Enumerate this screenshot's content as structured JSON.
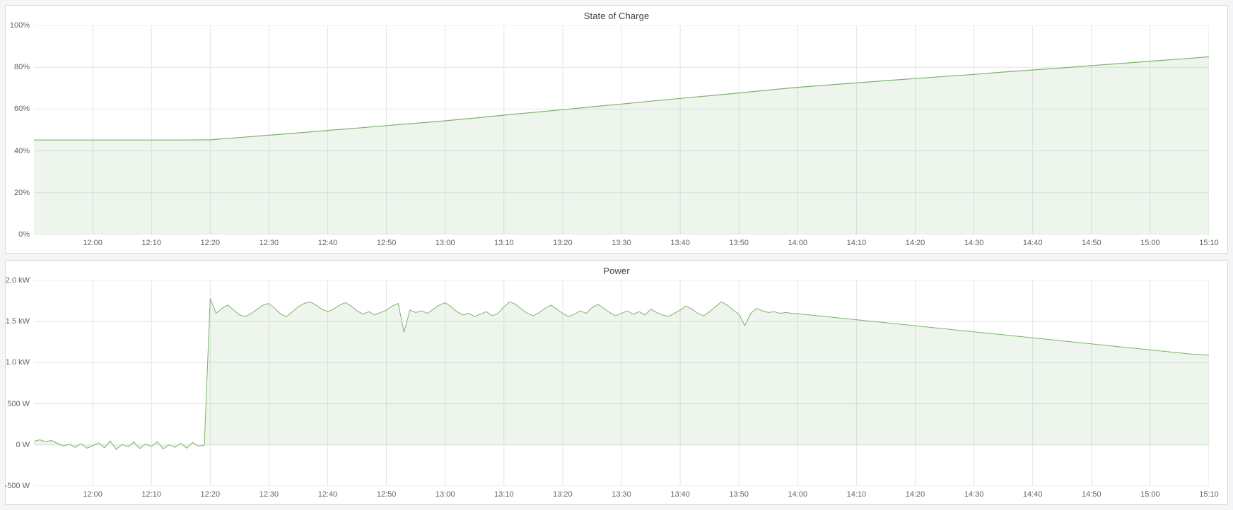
{
  "page": {
    "background_color": "#f4f5f6",
    "panel_border_color": "#d8d9da",
    "accent_green": "#7eb26d"
  },
  "chart_data": [
    {
      "type": "area",
      "title": "State of Charge",
      "x_unit": "minutes after 11:50",
      "x_range": [
        0,
        200
      ],
      "y_range": [
        0,
        100
      ],
      "grid": true,
      "grid_color": "#e4e5e7",
      "legend_position": "none",
      "x_ticks": [
        {
          "minute": 10,
          "label": "12:00"
        },
        {
          "minute": 20,
          "label": "12:10"
        },
        {
          "minute": 30,
          "label": "12:20"
        },
        {
          "minute": 40,
          "label": "12:30"
        },
        {
          "minute": 50,
          "label": "12:40"
        },
        {
          "minute": 60,
          "label": "12:50"
        },
        {
          "minute": 70,
          "label": "13:00"
        },
        {
          "minute": 80,
          "label": "13:10"
        },
        {
          "minute": 90,
          "label": "13:20"
        },
        {
          "minute": 100,
          "label": "13:30"
        },
        {
          "minute": 110,
          "label": "13:40"
        },
        {
          "minute": 120,
          "label": "13:50"
        },
        {
          "minute": 130,
          "label": "14:00"
        },
        {
          "minute": 140,
          "label": "14:10"
        },
        {
          "minute": 150,
          "label": "14:20"
        },
        {
          "minute": 160,
          "label": "14:30"
        },
        {
          "minute": 170,
          "label": "14:40"
        },
        {
          "minute": 180,
          "label": "14:50"
        },
        {
          "minute": 190,
          "label": "15:00"
        },
        {
          "minute": 200,
          "label": "15:10"
        }
      ],
      "y_ticks": [
        {
          "value": 0,
          "label": "0%"
        },
        {
          "value": 20,
          "label": "20%"
        },
        {
          "value": 40,
          "label": "40%"
        },
        {
          "value": 60,
          "label": "60%"
        },
        {
          "value": 80,
          "label": "80%"
        },
        {
          "value": 100,
          "label": "100%"
        }
      ],
      "series": [
        {
          "name": "State of Charge",
          "unit": "%",
          "color": "#7eb26d",
          "fill": "rgba(126,178,109,0.13)",
          "fill_to": 0,
          "width": 1.2,
          "x_start": 0,
          "x_step": 5,
          "values": [
            45.2,
            45.2,
            45.2,
            45.2,
            45.2,
            45.2,
            45.3,
            46.4,
            47.5,
            48.6,
            49.8,
            50.9,
            52.1,
            53.2,
            54.4,
            55.7,
            57.1,
            58.4,
            59.7,
            61.1,
            62.4,
            63.8,
            65.1,
            66.4,
            67.7,
            69.1,
            70.4,
            71.5,
            72.5,
            73.6,
            74.6,
            75.6,
            76.6,
            77.7,
            78.7,
            79.7,
            80.8,
            81.8,
            82.9,
            83.9,
            85.0
          ]
        }
      ]
    },
    {
      "type": "area",
      "title": "Power",
      "x_unit": "minutes after 11:50",
      "x_range": [
        0,
        200
      ],
      "y_range": [
        -500,
        2000
      ],
      "grid": true,
      "grid_color": "#e4e5e7",
      "legend_position": "none",
      "x_ticks": [
        {
          "minute": 10,
          "label": "12:00"
        },
        {
          "minute": 20,
          "label": "12:10"
        },
        {
          "minute": 30,
          "label": "12:20"
        },
        {
          "minute": 40,
          "label": "12:30"
        },
        {
          "minute": 50,
          "label": "12:40"
        },
        {
          "minute": 60,
          "label": "12:50"
        },
        {
          "minute": 70,
          "label": "13:00"
        },
        {
          "minute": 80,
          "label": "13:10"
        },
        {
          "minute": 90,
          "label": "13:20"
        },
        {
          "minute": 100,
          "label": "13:30"
        },
        {
          "minute": 110,
          "label": "13:40"
        },
        {
          "minute": 120,
          "label": "13:50"
        },
        {
          "minute": 130,
          "label": "14:00"
        },
        {
          "minute": 140,
          "label": "14:10"
        },
        {
          "minute": 150,
          "label": "14:20"
        },
        {
          "minute": 160,
          "label": "14:30"
        },
        {
          "minute": 170,
          "label": "14:40"
        },
        {
          "minute": 180,
          "label": "14:50"
        },
        {
          "minute": 190,
          "label": "15:00"
        },
        {
          "minute": 200,
          "label": "15:10"
        }
      ],
      "y_ticks": [
        {
          "value": -500,
          "label": "-500 W"
        },
        {
          "value": 0,
          "label": "0 W"
        },
        {
          "value": 500,
          "label": "500 W"
        },
        {
          "value": 1000,
          "label": "1.0 kW"
        },
        {
          "value": 1500,
          "label": "1.5 kW"
        },
        {
          "value": 2000,
          "label": "2.0 kW"
        }
      ],
      "series": [
        {
          "name": "Power",
          "unit": "W",
          "color": "#7eb26d",
          "fill": "rgba(126,178,109,0.13)",
          "fill_to": 0,
          "width": 1,
          "x_start": 0,
          "x_step": 1,
          "values": [
            45,
            62,
            38,
            55,
            20,
            -15,
            8,
            -30,
            15,
            -40,
            -10,
            25,
            -35,
            50,
            -55,
            5,
            -25,
            35,
            -45,
            10,
            -20,
            40,
            -50,
            0,
            -30,
            20,
            -40,
            30,
            -15,
            -5,
            1780,
            1600,
            1660,
            1700,
            1640,
            1580,
            1560,
            1600,
            1650,
            1700,
            1720,
            1660,
            1590,
            1560,
            1620,
            1680,
            1720,
            1740,
            1700,
            1650,
            1620,
            1650,
            1700,
            1730,
            1690,
            1630,
            1590,
            1620,
            1580,
            1610,
            1640,
            1690,
            1720,
            1370,
            1640,
            1610,
            1630,
            1600,
            1650,
            1700,
            1730,
            1680,
            1620,
            1580,
            1600,
            1560,
            1590,
            1620,
            1570,
            1600,
            1680,
            1740,
            1710,
            1650,
            1600,
            1570,
            1610,
            1660,
            1700,
            1650,
            1600,
            1560,
            1590,
            1630,
            1600,
            1670,
            1710,
            1660,
            1610,
            1570,
            1600,
            1630,
            1590,
            1620,
            1580,
            1650,
            1610,
            1580,
            1560,
            1600,
            1640,
            1690,
            1650,
            1600,
            1570,
            1620,
            1680,
            1740,
            1700,
            1640,
            1590,
            1450,
            1600,
            1660,
            1630,
            1610,
            1620,
            1600,
            1610,
            1600,
            1595,
            1588,
            1581,
            1573,
            1566,
            1559,
            1551,
            1544,
            1537,
            1529,
            1522,
            1515,
            1507,
            1500,
            1493,
            1485,
            1478,
            1471,
            1463,
            1456,
            1449,
            1441,
            1434,
            1427,
            1419,
            1412,
            1405,
            1397,
            1390,
            1383,
            1375,
            1368,
            1361,
            1353,
            1346,
            1339,
            1331,
            1324,
            1317,
            1309,
            1302,
            1295,
            1287,
            1280,
            1273,
            1265,
            1258,
            1251,
            1243,
            1236,
            1229,
            1221,
            1214,
            1207,
            1199,
            1192,
            1185,
            1177,
            1170,
            1163,
            1155,
            1148,
            1141,
            1133,
            1126,
            1119,
            1111,
            1104,
            1100,
            1095,
            1090
          ]
        }
      ]
    }
  ]
}
